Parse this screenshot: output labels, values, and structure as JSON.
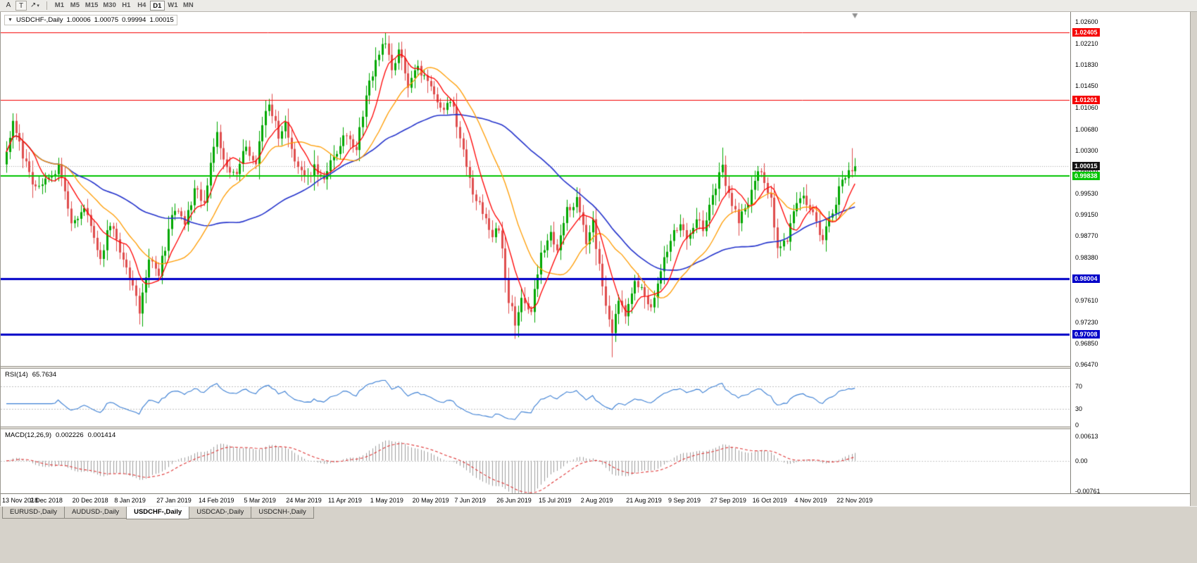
{
  "icons": {
    "symbol_dropdown": "▼",
    "arrow_tool": "↗",
    "caret": "▾"
  },
  "toolbar": {
    "tool_a": "A",
    "tool_t": "T",
    "timeframes": [
      "M1",
      "M5",
      "M15",
      "M30",
      "H1",
      "H4",
      "D1",
      "W1",
      "MN"
    ],
    "active_timeframe": "D1"
  },
  "chart": {
    "symbol_title": "USDCHF-,Daily",
    "open": "1.00006",
    "high": "1.00075",
    "low": "0.99994",
    "close": "1.00015",
    "close_value": 1.00015,
    "current_price_label": "1.00015",
    "price_max": 1.026,
    "price_min": 0.9647,
    "candles_count": 263,
    "ma_periods": {
      "fast": 8,
      "medium": 20,
      "slow": 55
    },
    "colors": {
      "up": "#00a800",
      "down": "#df4d4d",
      "ma_fast": "#ff0000",
      "ma_medium": "#ff9c00",
      "ma_slow": "#2433cc",
      "bid_line": "#a8a8a8",
      "current_badge_bg": "#141414"
    },
    "y_ticks": [
      "1.02600",
      "1.02210",
      "1.01830",
      "1.01450",
      "1.01060",
      "1.00680",
      "1.00300",
      "0.99910",
      "0.99530",
      "0.99150",
      "0.98770",
      "0.98380",
      "0.97990",
      "0.97610",
      "0.97230",
      "0.96850",
      "0.96470"
    ],
    "levels": [
      {
        "price": 1.02405,
        "label": "1.02405",
        "color": "#f50000",
        "width": 1
      },
      {
        "price": 1.01201,
        "label": "1.01201",
        "color": "#f50000",
        "width": 1
      },
      {
        "price": 0.99838,
        "label": "0.99838",
        "color": "#00c400",
        "width": 2
      },
      {
        "price": 0.98004,
        "label": "0.98004",
        "color": "#0000c8",
        "width": 3
      },
      {
        "price": 0.97008,
        "label": "0.97008",
        "color": "#0000c8",
        "width": 3
      }
    ],
    "x_labels": [
      [
        0,
        "13 Nov 2018"
      ],
      [
        13,
        "2 Dec 2018"
      ],
      [
        26,
        "20 Dec 2018"
      ],
      [
        39,
        "8 Jan 2019"
      ],
      [
        52,
        "27 Jan 2019"
      ],
      [
        65,
        "14 Feb 2019"
      ],
      [
        79,
        "5 Mar 2019"
      ],
      [
        92,
        "24 Mar 2019"
      ],
      [
        105,
        "11 Apr 2019"
      ],
      [
        118,
        "1 May 2019"
      ],
      [
        131,
        "20 May 2019"
      ],
      [
        144,
        "7 Jun 2019"
      ],
      [
        157,
        "26 Jun 2019"
      ],
      [
        170,
        "15 Jul 2019"
      ],
      [
        183,
        "2 Aug 2019"
      ],
      [
        197,
        "21 Aug 2019"
      ],
      [
        210,
        "9 Sep 2019"
      ],
      [
        223,
        "27 Sep 2019"
      ],
      [
        236,
        "16 Oct 2019"
      ],
      [
        249,
        "4 Nov 2019"
      ],
      [
        262,
        "22 Nov 2019"
      ]
    ],
    "price_path": [
      [
        0,
        1.0035
      ],
      [
        2,
        1.0075
      ],
      [
        5,
        1.002
      ],
      [
        9,
        0.996
      ],
      [
        13,
        0.9985
      ],
      [
        16,
        1.0
      ],
      [
        20,
        0.99
      ],
      [
        24,
        0.993
      ],
      [
        26,
        0.99
      ],
      [
        29,
        0.984
      ],
      [
        32,
        0.99
      ],
      [
        36,
        0.9835
      ],
      [
        39,
        0.979
      ],
      [
        41,
        0.9745
      ],
      [
        44,
        0.983
      ],
      [
        47,
        0.981
      ],
      [
        52,
        0.993
      ],
      [
        55,
        0.99
      ],
      [
        58,
        0.996
      ],
      [
        61,
        0.994
      ],
      [
        65,
        1.006
      ],
      [
        68,
        1.0
      ],
      [
        71,
        0.999
      ],
      [
        74,
        1.0035
      ],
      [
        77,
        1.0
      ],
      [
        79,
        1.008
      ],
      [
        81,
        1.0115
      ],
      [
        84,
        1.006
      ],
      [
        86,
        1.0085
      ],
      [
        89,
        1.001
      ],
      [
        92,
        0.9975
      ],
      [
        95,
        1.0
      ],
      [
        98,
        0.997
      ],
      [
        101,
        1.002
      ],
      [
        105,
        1.006
      ],
      [
        108,
        1.003
      ],
      [
        111,
        1.013
      ],
      [
        114,
        1.019
      ],
      [
        117,
        1.0225
      ],
      [
        119,
        1.018
      ],
      [
        121,
        1.021
      ],
      [
        124,
        1.015
      ],
      [
        127,
        1.0175
      ],
      [
        131,
        1.0145
      ],
      [
        134,
        1.01
      ],
      [
        137,
        1.0125
      ],
      [
        140,
        1.005
      ],
      [
        144,
        0.9955
      ],
      [
        147,
        0.992
      ],
      [
        150,
        0.987
      ],
      [
        152,
        0.9895
      ],
      [
        155,
        0.976
      ],
      [
        157,
        0.9725
      ],
      [
        159,
        0.976
      ],
      [
        162,
        0.974
      ],
      [
        165,
        0.985
      ],
      [
        168,
        0.988
      ],
      [
        170,
        0.986
      ],
      [
        173,
        0.992
      ],
      [
        176,
        0.9945
      ],
      [
        179,
        0.987
      ],
      [
        181,
        0.99
      ],
      [
        183,
        0.982
      ],
      [
        185,
        0.9745
      ],
      [
        187,
        0.971
      ],
      [
        189,
        0.977
      ],
      [
        191,
        0.9725
      ],
      [
        194,
        0.98
      ],
      [
        197,
        0.977
      ],
      [
        199,
        0.9745
      ],
      [
        202,
        0.982
      ],
      [
        205,
        0.987
      ],
      [
        208,
        0.99
      ],
      [
        210,
        0.987
      ],
      [
        213,
        0.9915
      ],
      [
        215,
        0.989
      ],
      [
        218,
        0.995
      ],
      [
        221,
        1.0
      ],
      [
        223,
        0.995
      ],
      [
        226,
        0.9905
      ],
      [
        229,
        0.9935
      ],
      [
        232,
        0.9995
      ],
      [
        234,
        0.9975
      ],
      [
        236,
        0.994
      ],
      [
        238,
        0.9855
      ],
      [
        241,
        0.987
      ],
      [
        243,
        0.993
      ],
      [
        246,
        0.995
      ],
      [
        249,
        0.9915
      ],
      [
        252,
        0.987
      ],
      [
        255,
        0.9925
      ],
      [
        258,
        0.9975
      ],
      [
        260,
        0.9995
      ],
      [
        262,
        1.00015
      ]
    ],
    "spikes": [
      {
        "i": 41,
        "low": 0.9728
      },
      {
        "i": 81,
        "high": 1.0122
      },
      {
        "i": 117,
        "high": 1.024
      },
      {
        "i": 122,
        "high": 1.0222
      },
      {
        "i": 157,
        "low": 0.9693
      },
      {
        "i": 187,
        "low": 0.966
      },
      {
        "i": 221,
        "high": 1.0035
      },
      {
        "i": 261,
        "high": 1.0034
      }
    ]
  },
  "rsi": {
    "name": "RSI(14)",
    "value": "65.7634",
    "period": 14,
    "levels": [
      70,
      30
    ],
    "axis_labels": [
      [
        "70",
        70
      ],
      [
        "30",
        30
      ],
      [
        "0",
        0
      ]
    ],
    "color": "#3b7fd4",
    "level_line_color": "#c0c0c0"
  },
  "macd": {
    "name": "MACD(12,26,9)",
    "value_main": "0.002226",
    "value_signal": "0.001414",
    "params": {
      "fast": 12,
      "slow": 26,
      "signal": 9
    },
    "axis": {
      "top_value": 0.00613,
      "bottom_value": -0.00761,
      "labels": [
        [
          "0.00613",
          0.00613
        ],
        [
          "0.00",
          0
        ],
        [
          "-0.00761",
          -0.00761
        ]
      ]
    },
    "histogram_color": "#9e9e9e",
    "signal_color": "#e03636",
    "zero_line_color": "#c8c8c8"
  },
  "tabs": [
    {
      "label": "EURUSD-,Daily",
      "active": false
    },
    {
      "label": "AUDUSD-,Daily",
      "active": false
    },
    {
      "label": "USDCHF-,Daily",
      "active": true
    },
    {
      "label": "USDCAD-,Daily",
      "active": false
    },
    {
      "label": "USDCNH-,Daily",
      "active": false
    }
  ]
}
